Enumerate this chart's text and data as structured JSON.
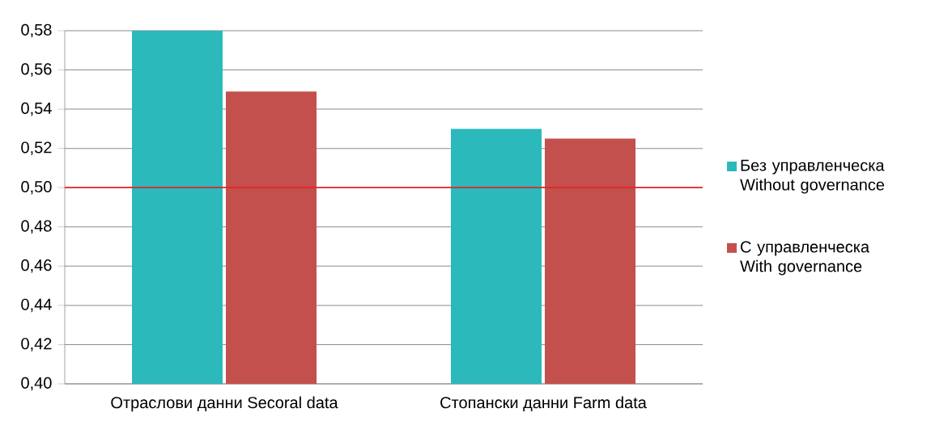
{
  "chart_data": {
    "type": "bar",
    "categories": [
      "Отраслови данни Secoral data",
      "Стопански данни Farm data"
    ],
    "series": [
      {
        "name": "Без управленческа Without governance",
        "color": "#2cb9bb",
        "values": [
          0.58,
          0.53
        ]
      },
      {
        "name": "С управленческа With governance",
        "color": "#c4504d",
        "values": [
          0.549,
          0.525
        ]
      }
    ],
    "ylim": [
      0.4,
      0.58
    ],
    "yticks": [
      {
        "value": 0.4,
        "label": "0,40"
      },
      {
        "value": 0.42,
        "label": "0,42"
      },
      {
        "value": 0.44,
        "label": "0,44"
      },
      {
        "value": 0.46,
        "label": "0,46"
      },
      {
        "value": 0.48,
        "label": "0,48"
      },
      {
        "value": 0.5,
        "label": "0,50"
      },
      {
        "value": 0.52,
        "label": "0,52"
      },
      {
        "value": 0.54,
        "label": "0,54"
      },
      {
        "value": 0.56,
        "label": "0,56"
      },
      {
        "value": 0.58,
        "label": "0,58"
      }
    ],
    "ref_lines": [
      {
        "axis": "y",
        "value": 0.5,
        "color": "#e0262a"
      }
    ],
    "grid": "y",
    "legend": "right"
  }
}
